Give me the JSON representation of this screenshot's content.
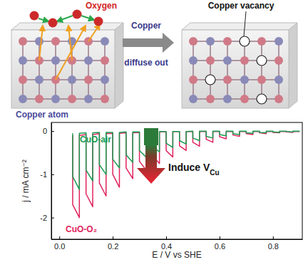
{
  "chart_data": {
    "type": "line",
    "x_label": "E / V vs SHE",
    "y_label": "j / mA cm⁻²",
    "xlim": [
      -0.03,
      0.91
    ],
    "xticks": [
      {
        "value": 0,
        "label": "0.0"
      },
      0.2,
      0.4,
      0.6,
      0.8
    ],
    "ylim": [
      -2.5,
      0.2
    ],
    "yticks": [
      -2,
      -1,
      0
    ],
    "grid": false,
    "annotation": {
      "text": "Induce V",
      "subscript": "Cu"
    },
    "x": [
      0.9,
      0.875,
      0.875,
      0.85,
      0.85,
      0.825,
      0.825,
      0.8,
      0.8,
      0.775,
      0.775,
      0.75,
      0.75,
      0.725,
      0.725,
      0.7,
      0.7,
      0.675,
      0.675,
      0.65,
      0.65,
      0.625,
      0.625,
      0.6,
      0.6,
      0.575,
      0.575,
      0.55,
      0.55,
      0.525,
      0.525,
      0.5,
      0.5,
      0.475,
      0.475,
      0.45,
      0.45,
      0.425,
      0.425,
      0.4,
      0.4,
      0.375,
      0.375,
      0.35,
      0.35,
      0.325,
      0.325,
      0.3,
      0.3,
      0.275,
      0.275,
      0.25,
      0.25,
      0.225,
      0.225,
      0.2,
      0.2,
      0.175,
      0.175,
      0.15,
      0.15,
      0.125,
      0.125,
      0.1,
      0.1,
      0.075,
      0.075,
      0.05,
      0.05
    ],
    "series": [
      {
        "name": "CuO-O₂",
        "color": "#e0245e",
        "values": [
          -0.01,
          -0.01,
          -0.03,
          -0.02,
          -0.01,
          -0.01,
          -0.04,
          -0.03,
          -0.01,
          -0.01,
          -0.06,
          -0.04,
          -0.01,
          -0.01,
          -0.08,
          -0.06,
          -0.01,
          -0.01,
          -0.12,
          -0.09,
          -0.01,
          -0.01,
          -0.18,
          -0.13,
          -0.01,
          -0.01,
          -0.26,
          -0.19,
          -0.01,
          -0.01,
          -0.35,
          -0.26,
          -0.01,
          -0.01,
          -0.45,
          -0.34,
          -0.01,
          -0.01,
          -0.6,
          -0.45,
          -0.01,
          -0.02,
          -0.75,
          -0.57,
          -0.02,
          -0.03,
          -0.9,
          -0.7,
          -0.03,
          -0.04,
          -1.1,
          -0.85,
          -0.04,
          -0.05,
          -1.3,
          -1.0,
          -0.05,
          -0.06,
          -1.5,
          -1.2,
          -0.06,
          -0.08,
          -1.75,
          -1.45,
          -0.08,
          -0.1,
          -2.0,
          -1.7,
          -0.1
        ]
      },
      {
        "name": "CuO-air",
        "color": "#1a9a50",
        "values": [
          0,
          0,
          -0.02,
          -0.01,
          0,
          0,
          -0.03,
          -0.02,
          0,
          0,
          -0.04,
          -0.03,
          0,
          0,
          -0.05,
          -0.04,
          0,
          0,
          -0.08,
          -0.06,
          0,
          0,
          -0.11,
          -0.08,
          0,
          0,
          -0.16,
          -0.12,
          0,
          0,
          -0.22,
          -0.16,
          0,
          -0.01,
          -0.3,
          -0.22,
          -0.01,
          -0.01,
          -0.38,
          -0.28,
          -0.01,
          -0.01,
          -0.48,
          -0.36,
          -0.01,
          -0.02,
          -0.6,
          -0.45,
          -0.02,
          -0.02,
          -0.72,
          -0.55,
          -0.02,
          -0.03,
          -0.85,
          -0.65,
          -0.03,
          -0.03,
          -1.0,
          -0.78,
          -0.03,
          -0.04,
          -1.15,
          -0.9,
          -0.04,
          -0.05,
          -1.35,
          -1.05,
          -0.05
        ]
      }
    ]
  },
  "diagram": {
    "oxygen_label": "Oxygen",
    "copper_atom_label": "Copper atom",
    "arrow_label_top": "Copper",
    "arrow_label_bottom": "diffuse out",
    "vacancy_label": "Copper vacancy"
  }
}
